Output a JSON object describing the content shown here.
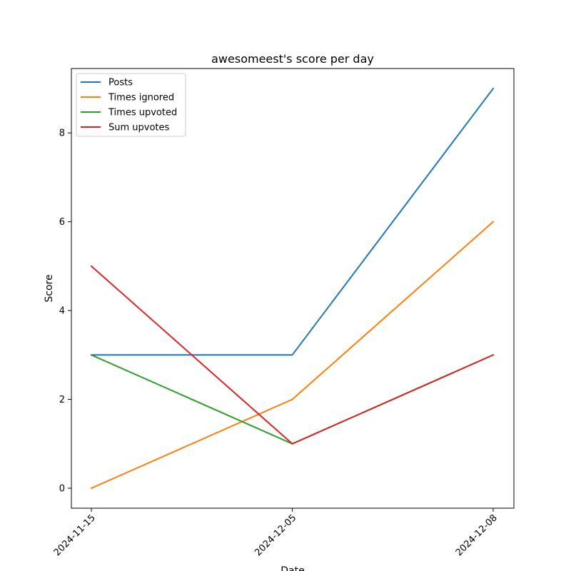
{
  "chart_data": {
    "type": "line",
    "title": "awesomeest's score per day",
    "xlabel": "Date",
    "ylabel": "Score",
    "x": [
      "2024-11-15",
      "2024-12-05",
      "2024-12-08"
    ],
    "ylim": [
      -0.45,
      9.45
    ],
    "yticks": [
      0,
      2,
      4,
      6,
      8
    ],
    "grid": false,
    "legend_position": "top-left",
    "series": [
      {
        "name": "Posts",
        "color": "#1f77b4",
        "values": [
          3,
          3,
          9
        ]
      },
      {
        "name": "Times ignored",
        "color": "#ff7f0e",
        "values": [
          0,
          2,
          6
        ]
      },
      {
        "name": "Times upvoted",
        "color": "#2ca02c",
        "values": [
          3,
          1,
          3
        ]
      },
      {
        "name": "Sum upvotes",
        "color": "#d62728",
        "values": [
          5,
          1,
          3
        ]
      }
    ]
  }
}
